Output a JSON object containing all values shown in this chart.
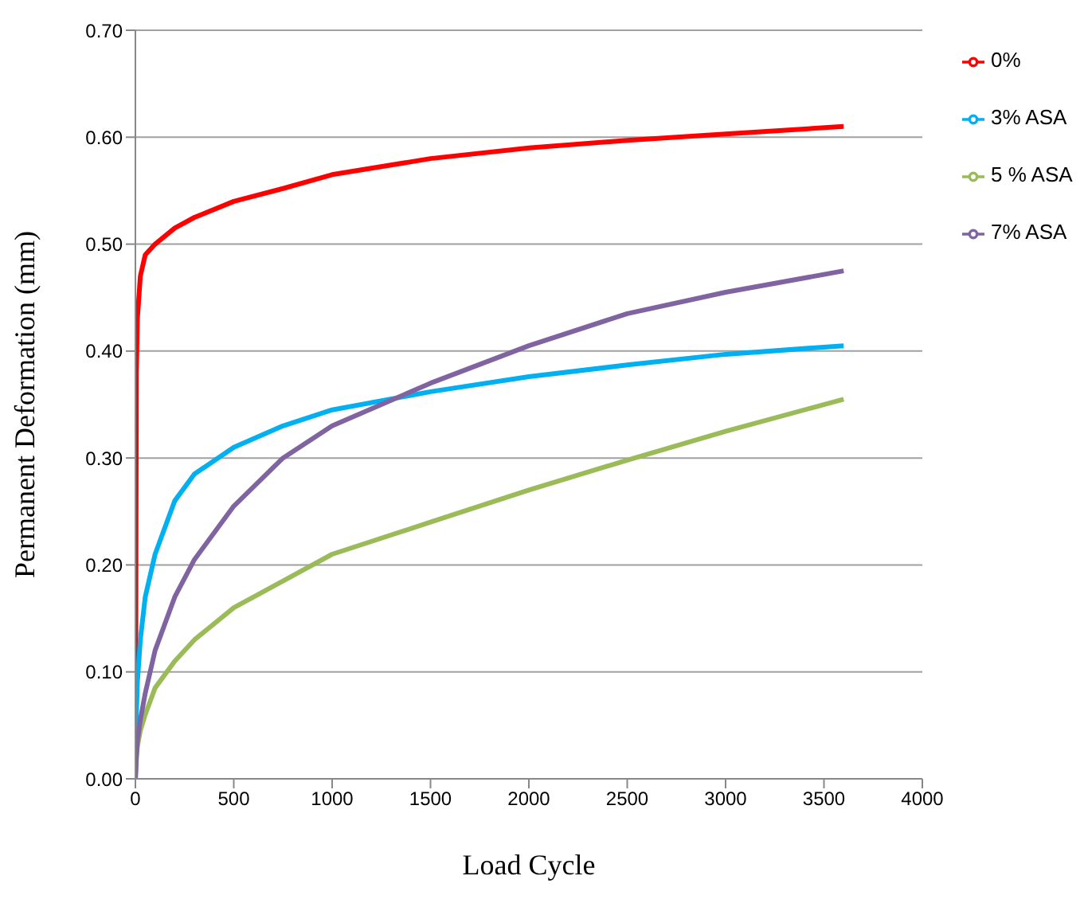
{
  "chart_data": {
    "type": "line",
    "xlabel": "Load Cycle",
    "ylabel": "Permanent Deformation (mm)",
    "xlim": [
      0,
      4000
    ],
    "xticks": [
      0,
      500,
      1000,
      1500,
      2000,
      2500,
      3000,
      3500,
      4000
    ],
    "ylim": [
      0,
      0.7
    ],
    "yticks": [
      {
        "value": 0,
        "label": "0.00"
      },
      {
        "value": 0.1,
        "label": "0.10"
      },
      {
        "value": 0.2,
        "label": "0.20"
      },
      {
        "value": 0.3,
        "label": "0.30"
      },
      {
        "value": 0.4,
        "label": "0.40"
      },
      {
        "value": 0.5,
        "label": "0.50"
      },
      {
        "value": 0.6,
        "label": "0.60"
      },
      {
        "value": 0.7,
        "label": "0.70"
      }
    ],
    "grid": "y",
    "legend": "top right",
    "marker": "none",
    "line_style": "solid",
    "x": [
      0,
      5,
      10,
      25,
      50,
      100,
      200,
      300,
      500,
      750,
      1000,
      1500,
      2000,
      2500,
      3000,
      3600
    ],
    "series": [
      {
        "name": "0%",
        "color": "#ff0000",
        "values": [
          0.0,
          0.38,
          0.43,
          0.47,
          0.49,
          0.5,
          0.515,
          0.525,
          0.54,
          0.552,
          0.565,
          0.58,
          0.59,
          0.597,
          0.603,
          0.61
        ]
      },
      {
        "name": "3% ASA",
        "color": "#00b0f0",
        "values": [
          0.0,
          0.06,
          0.09,
          0.13,
          0.17,
          0.21,
          0.26,
          0.285,
          0.31,
          0.33,
          0.345,
          0.362,
          0.376,
          0.387,
          0.397,
          0.405
        ]
      },
      {
        "name": "5 % ASA",
        "color": "#9bbb59",
        "values": [
          0.0,
          0.02,
          0.03,
          0.045,
          0.06,
          0.085,
          0.11,
          0.13,
          0.16,
          0.185,
          0.21,
          0.24,
          0.27,
          0.298,
          0.325,
          0.355
        ]
      },
      {
        "name": "7% ASA",
        "color": "#8064a2",
        "values": [
          0.0,
          0.02,
          0.035,
          0.055,
          0.08,
          0.12,
          0.17,
          0.205,
          0.255,
          0.3,
          0.33,
          0.37,
          0.405,
          0.435,
          0.455,
          0.475
        ]
      }
    ]
  }
}
